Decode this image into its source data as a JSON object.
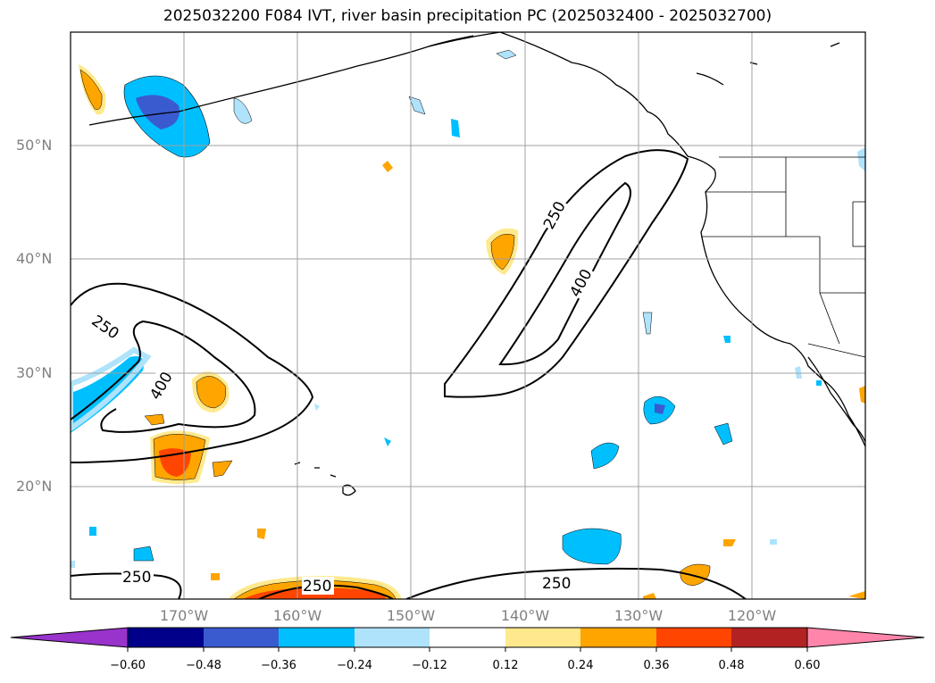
{
  "title": "2025032200 F084 IVT, river basin precipitation PC (2025032400 - 2025032700)",
  "lat_labels": [
    "50°N",
    "40°N",
    "30°N",
    "20°N"
  ],
  "lon_labels": [
    "170°W",
    "160°W",
    "150°W",
    "140°W",
    "130°W",
    "120°W"
  ],
  "contour_labels": {
    "ar_250": "250",
    "ar_400": "400",
    "west_250": "250",
    "west_400": "400",
    "south_250_a": "250",
    "south_250_b": "250",
    "south_250_c": "250"
  },
  "colorbar": {
    "ticks": [
      "−0.60",
      "−0.48",
      "−0.36",
      "−0.24",
      "−0.12",
      "0.12",
      "0.24",
      "0.36",
      "0.48",
      "0.60"
    ],
    "colors": [
      "#9933cc",
      "#00008b",
      "#3a5bcf",
      "#00bfff",
      "#aee3fb",
      "#ffffff",
      "#ffe98c",
      "#ffa500",
      "#ff4500",
      "#b22222",
      "#ff85aa"
    ]
  },
  "map_extent": {
    "lon": [
      -180,
      -110
    ],
    "lat": [
      10,
      60
    ]
  }
}
